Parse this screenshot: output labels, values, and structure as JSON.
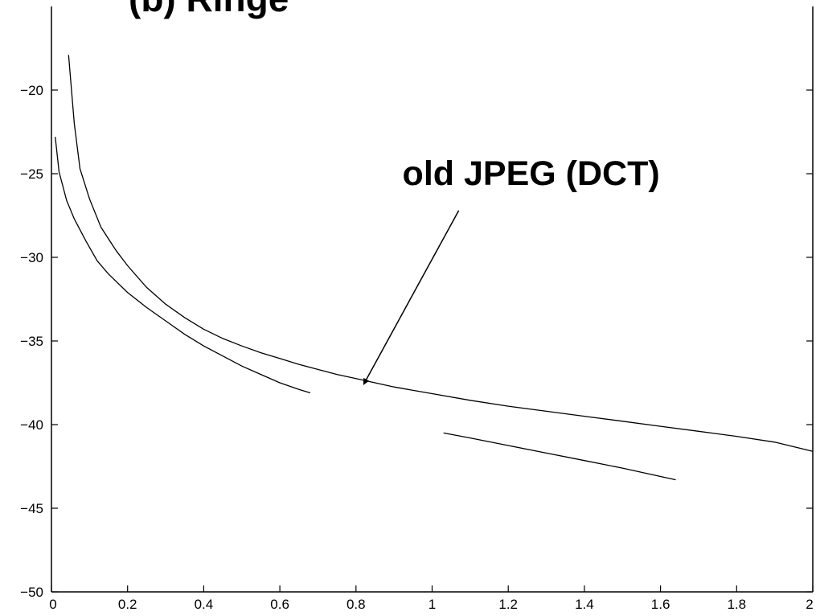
{
  "chart_data": {
    "type": "line",
    "title": "(b) Ringe",
    "xlabel": "",
    "ylabel": "",
    "xlim": [
      0,
      2
    ],
    "ylim": [
      -50,
      -15
    ],
    "x_ticks": [
      {
        "value": 0,
        "label": "0"
      },
      {
        "value": 0.2,
        "label": "0.2"
      },
      {
        "value": 0.4,
        "label": "0.4"
      },
      {
        "value": 0.6,
        "label": "0.6"
      },
      {
        "value": 0.8,
        "label": "0.8"
      },
      {
        "value": 1,
        "label": "1"
      },
      {
        "value": 1.2,
        "label": "1.2"
      },
      {
        "value": 1.4,
        "label": "1.4"
      },
      {
        "value": 1.6,
        "label": "1.6"
      },
      {
        "value": 1.8,
        "label": "1.8"
      },
      {
        "value": 2,
        "label": "2"
      }
    ],
    "y_ticks": [
      {
        "value": -20,
        "label": "−20"
      },
      {
        "value": -25,
        "label": "−25"
      },
      {
        "value": -30,
        "label": "−30"
      },
      {
        "value": -35,
        "label": "−35"
      },
      {
        "value": -40,
        "label": "−40"
      },
      {
        "value": -45,
        "label": "−45"
      },
      {
        "value": -50,
        "label": "−50"
      }
    ],
    "grid": false,
    "series": [
      {
        "x": [
          0.045,
          0.06,
          0.075,
          0.1,
          0.13,
          0.17,
          0.2,
          0.25,
          0.3,
          0.35,
          0.4,
          0.45,
          0.5,
          0.55,
          0.6,
          0.65,
          0.7,
          0.75,
          0.8,
          0.85,
          0.9,
          0.95,
          1.0,
          1.1,
          1.2,
          1.3,
          1.4,
          1.5,
          1.6,
          1.7,
          1.8,
          1.9,
          2.0
        ],
        "y": [
          -17.9,
          -22.0,
          -24.7,
          -26.5,
          -28.2,
          -29.6,
          -30.5,
          -31.8,
          -32.8,
          -33.6,
          -34.3,
          -34.85,
          -35.3,
          -35.7,
          -36.05,
          -36.4,
          -36.7,
          -37.0,
          -37.25,
          -37.5,
          -37.75,
          -37.95,
          -38.15,
          -38.55,
          -38.9,
          -39.2,
          -39.5,
          -39.8,
          -40.1,
          -40.4,
          -40.7,
          -41.05,
          -41.6
        ]
      },
      {
        "x": [
          0.01,
          0.02,
          0.04,
          0.06,
          0.09,
          0.12,
          0.15,
          0.2,
          0.25,
          0.3,
          0.35,
          0.4,
          0.45,
          0.5,
          0.55,
          0.6,
          0.65,
          0.68
        ],
        "y": [
          -22.8,
          -24.9,
          -26.6,
          -27.7,
          -29.0,
          -30.2,
          -31.0,
          -32.1,
          -33.0,
          -33.8,
          -34.6,
          -35.3,
          -35.9,
          -36.5,
          -37.0,
          -37.5,
          -37.9,
          -38.1
        ]
      },
      {
        "x": [
          1.03,
          1.1,
          1.2,
          1.3,
          1.4,
          1.5,
          1.6,
          1.64
        ],
        "y": [
          -40.5,
          -40.8,
          -41.25,
          -41.7,
          -42.15,
          -42.6,
          -43.1,
          -43.3
        ]
      }
    ],
    "annotations": [
      {
        "text": "old JPEG (DCT)",
        "x": 1.26,
        "y": -25.0,
        "arrow_from": [
          1.07,
          -27.2
        ],
        "arrow_to": [
          0.82,
          -37.6
        ]
      }
    ]
  }
}
